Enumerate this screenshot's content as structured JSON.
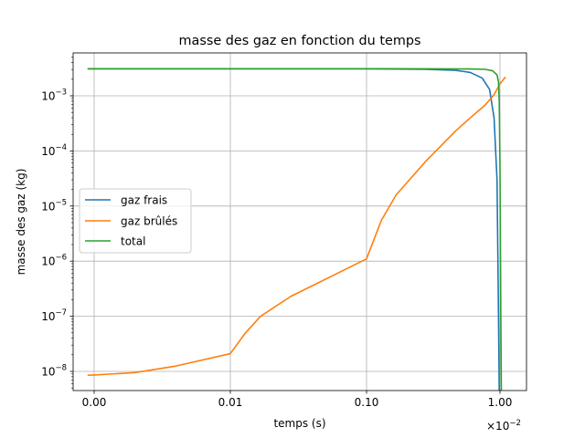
{
  "chart_data": {
    "type": "line",
    "title": "masse des gaz en fonction du temps",
    "xlabel": "temps (s)",
    "ylabel": "masse des gaz (kg)",
    "x_offset_label": "×10",
    "x_offset_exp": "−2",
    "x_scale": "logit-like",
    "y_scale": "log",
    "grid": true,
    "legend_position": "center-left",
    "x_ticks": [
      {
        "x": 0.0,
        "label": "0.00"
      },
      {
        "x": 0.01,
        "label": "0.01"
      },
      {
        "x": 0.1,
        "label": "0.10"
      },
      {
        "x": 1.0,
        "label": "1.00"
      }
    ],
    "y_ticks": [
      {
        "exp": -8,
        "label": "10",
        "sup": "−8"
      },
      {
        "exp": -7,
        "label": "10",
        "sup": "−7"
      },
      {
        "exp": -6,
        "label": "10",
        "sup": "−6"
      },
      {
        "exp": -5,
        "label": "10",
        "sup": "−5"
      },
      {
        "exp": -4,
        "label": "10",
        "sup": "−4"
      },
      {
        "exp": -3,
        "label": "10",
        "sup": "−3"
      }
    ],
    "series": [
      {
        "name": "gaz frais",
        "color": "#1f77b4",
        "points": [
          [
            -0.004,
            0.00309
          ],
          [
            0.0,
            0.00309
          ],
          [
            0.01,
            0.00309
          ],
          [
            0.1,
            0.003085
          ],
          [
            0.3,
            0.00306
          ],
          [
            0.5,
            0.00302
          ],
          [
            0.7,
            0.0029
          ],
          [
            0.8,
            0.00265
          ],
          [
            0.88,
            0.0021
          ],
          [
            0.93,
            0.0013
          ],
          [
            0.96,
            0.0004
          ],
          [
            0.98,
            3e-05
          ],
          [
            0.99,
            1e-07
          ],
          [
            0.995,
            4e-09
          ]
        ]
      },
      {
        "name": "gaz brûlés",
        "color": "#ff7f0e",
        "points": [
          [
            -0.004,
            8.5e-09
          ],
          [
            0.0,
            8.6e-09
          ],
          [
            0.003,
            9.5e-09
          ],
          [
            0.006,
            1.25e-08
          ],
          [
            0.01,
            2.1e-08
          ],
          [
            0.02,
            5e-08
          ],
          [
            0.03,
            1e-07
          ],
          [
            0.05,
            2.3e-07
          ],
          [
            0.1,
            1.1e-06
          ],
          [
            0.2,
            5.5e-06
          ],
          [
            0.3,
            1.6e-05
          ],
          [
            0.5,
            6.5e-05
          ],
          [
            0.7,
            0.00023
          ],
          [
            0.8,
            0.0004
          ],
          [
            0.9,
            0.00068
          ],
          [
            0.96,
            0.00105
          ],
          [
            1.0,
            0.00165
          ],
          [
            1.02,
            0.0022
          ]
        ]
      },
      {
        "name": "total",
        "color": "#2ca02c",
        "points": [
          [
            -0.004,
            0.0031
          ],
          [
            0.0,
            0.0031
          ],
          [
            0.1,
            0.0031
          ],
          [
            0.5,
            0.00309
          ],
          [
            0.8,
            0.00307
          ],
          [
            0.9,
            0.00302
          ],
          [
            0.95,
            0.00285
          ],
          [
            0.98,
            0.0024
          ],
          [
            0.99,
            0.0018
          ],
          [
            0.995,
            0.0008
          ],
          [
            1.0,
            5e-05
          ],
          [
            1.003,
            1e-07
          ],
          [
            1.005,
            4e-09
          ]
        ]
      }
    ]
  }
}
